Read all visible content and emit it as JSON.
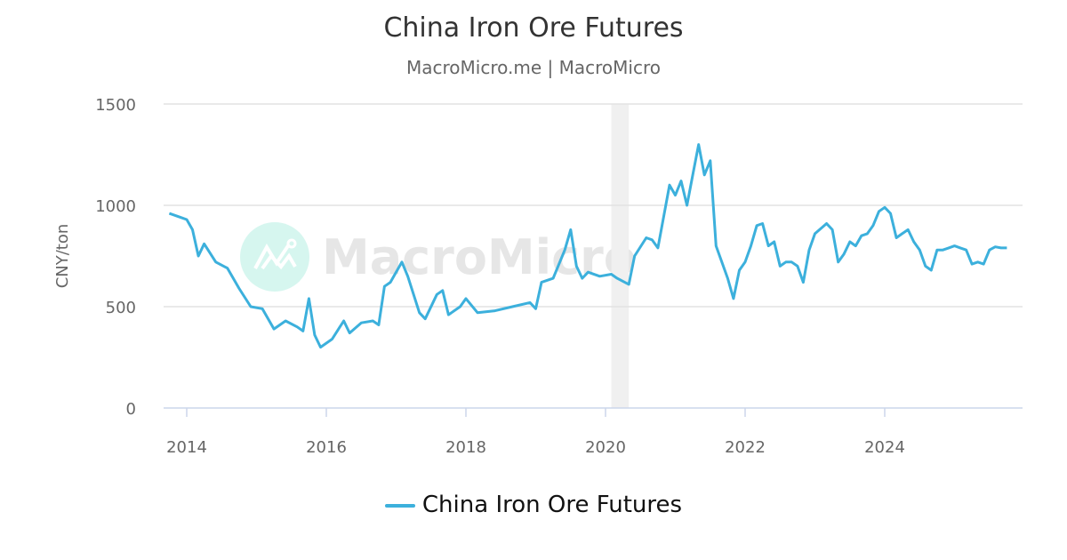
{
  "chart_data": {
    "type": "line",
    "title": "China Iron Ore Futures",
    "subtitle": "MacroMicro.me | MacroMicro",
    "ylabel": "CNY/ton",
    "xlabel": "",
    "ylim": [
      0,
      1500
    ],
    "yticks": [
      "0",
      "500",
      "1000",
      "1500"
    ],
    "xticks": [
      "2014",
      "2016",
      "2018",
      "2020",
      "2022",
      "2024"
    ],
    "grid": true,
    "legend_position": "bottom",
    "watermark": "MacroMicro",
    "shaded_period": {
      "start": "2020-02",
      "end": "2020-05",
      "color": "#f0f0f0"
    },
    "series": [
      {
        "name": "China Iron Ore Futures",
        "color": "#3cb0dc",
        "points": [
          [
            "2013-10",
            960
          ],
          [
            "2013-12",
            940
          ],
          [
            "2014-01",
            930
          ],
          [
            "2014-02",
            880
          ],
          [
            "2014-03",
            750
          ],
          [
            "2014-04",
            810
          ],
          [
            "2014-06",
            720
          ],
          [
            "2014-08",
            690
          ],
          [
            "2014-10",
            590
          ],
          [
            "2014-12",
            500
          ],
          [
            "2015-02",
            490
          ],
          [
            "2015-04",
            390
          ],
          [
            "2015-06",
            430
          ],
          [
            "2015-08",
            400
          ],
          [
            "2015-09",
            380
          ],
          [
            "2015-10",
            540
          ],
          [
            "2015-11",
            360
          ],
          [
            "2015-12",
            300
          ],
          [
            "2016-02",
            340
          ],
          [
            "2016-04",
            430
          ],
          [
            "2016-05",
            370
          ],
          [
            "2016-07",
            420
          ],
          [
            "2016-09",
            430
          ],
          [
            "2016-10",
            410
          ],
          [
            "2016-11",
            600
          ],
          [
            "2016-12",
            620
          ],
          [
            "2017-02",
            720
          ],
          [
            "2017-03",
            650
          ],
          [
            "2017-05",
            470
          ],
          [
            "2017-06",
            440
          ],
          [
            "2017-08",
            560
          ],
          [
            "2017-09",
            580
          ],
          [
            "2017-10",
            460
          ],
          [
            "2017-12",
            500
          ],
          [
            "2018-01",
            540
          ],
          [
            "2018-03",
            470
          ],
          [
            "2018-06",
            480
          ],
          [
            "2018-09",
            500
          ],
          [
            "2018-12",
            520
          ],
          [
            "2019-01",
            490
          ],
          [
            "2019-02",
            620
          ],
          [
            "2019-04",
            640
          ],
          [
            "2019-06",
            780
          ],
          [
            "2019-07",
            880
          ],
          [
            "2019-08",
            700
          ],
          [
            "2019-09",
            640
          ],
          [
            "2019-10",
            670
          ],
          [
            "2019-12",
            650
          ],
          [
            "2020-02",
            660
          ],
          [
            "2020-03",
            640
          ],
          [
            "2020-05",
            610
          ],
          [
            "2020-06",
            750
          ],
          [
            "2020-08",
            840
          ],
          [
            "2020-09",
            830
          ],
          [
            "2020-10",
            790
          ],
          [
            "2020-12",
            1100
          ],
          [
            "2021-01",
            1050
          ],
          [
            "2021-02",
            1120
          ],
          [
            "2021-03",
            1000
          ],
          [
            "2021-04",
            1150
          ],
          [
            "2021-05",
            1300
          ],
          [
            "2021-06",
            1150
          ],
          [
            "2021-07",
            1220
          ],
          [
            "2021-08",
            800
          ],
          [
            "2021-09",
            720
          ],
          [
            "2021-10",
            640
          ],
          [
            "2021-11",
            540
          ],
          [
            "2021-12",
            680
          ],
          [
            "2022-01",
            720
          ],
          [
            "2022-02",
            800
          ],
          [
            "2022-03",
            900
          ],
          [
            "2022-04",
            910
          ],
          [
            "2022-05",
            800
          ],
          [
            "2022-06",
            820
          ],
          [
            "2022-07",
            700
          ],
          [
            "2022-08",
            720
          ],
          [
            "2022-09",
            720
          ],
          [
            "2022-10",
            700
          ],
          [
            "2022-11",
            620
          ],
          [
            "2022-12",
            780
          ],
          [
            "2023-01",
            860
          ],
          [
            "2023-03",
            910
          ],
          [
            "2023-04",
            880
          ],
          [
            "2023-05",
            720
          ],
          [
            "2023-06",
            760
          ],
          [
            "2023-07",
            820
          ],
          [
            "2023-08",
            800
          ],
          [
            "2023-09",
            850
          ],
          [
            "2023-10",
            860
          ],
          [
            "2023-11",
            900
          ],
          [
            "2023-12",
            970
          ],
          [
            "2024-01",
            990
          ],
          [
            "2024-02",
            960
          ],
          [
            "2024-03",
            840
          ],
          [
            "2024-04",
            860
          ],
          [
            "2024-05",
            880
          ],
          [
            "2024-06",
            820
          ],
          [
            "2024-07",
            780
          ],
          [
            "2024-08",
            700
          ],
          [
            "2024-09",
            680
          ],
          [
            "2024-10",
            780
          ],
          [
            "2024-11",
            780
          ],
          [
            "2024-12",
            790
          ],
          [
            "2025-01",
            800
          ],
          [
            "2025-02",
            790
          ],
          [
            "2025-03",
            780
          ],
          [
            "2025-04",
            710
          ],
          [
            "2025-05",
            720
          ],
          [
            "2025-06",
            710
          ],
          [
            "2025-07",
            780
          ],
          [
            "2025-08",
            795
          ],
          [
            "2025-09",
            790
          ],
          [
            "2025-10",
            790
          ]
        ]
      }
    ]
  }
}
